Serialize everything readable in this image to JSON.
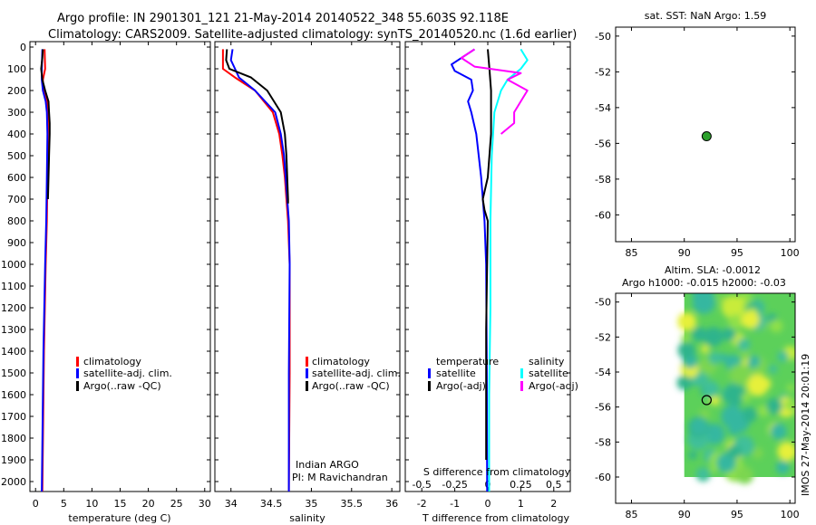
{
  "header": {
    "line1": "Argo profile: IN 2901301_121 21-May-2014 20140522_348 55.603S 92.118E",
    "line2": "Climatology: CARS2009. Satellite-adjusted climatology: synTS_20140520.nc (1.6d earlier)"
  },
  "colors": {
    "climatology": "#ff0000",
    "satellite": "#0000ff",
    "argo": "#000000",
    "sal_satellite": "#00ffff",
    "sal_argo": "#ff00ff",
    "float_marker": "#2ca02c"
  },
  "credit": "IMOS 27-May-2014 20:01:19",
  "chart_data": [
    {
      "type": "line",
      "id": "temperature",
      "xlabel": "temperature (deg C)",
      "xlim": [
        -1,
        31
      ],
      "ylim": [
        2100,
        0
      ],
      "xticks": [
        0,
        5,
        10,
        15,
        20,
        25,
        30
      ],
      "yticks": [
        0,
        100,
        200,
        300,
        400,
        500,
        600,
        700,
        800,
        900,
        1000,
        1100,
        1200,
        1300,
        1400,
        1500,
        1600,
        1700,
        1800,
        1900,
        2000
      ],
      "legend": [
        "climatology",
        "satellite-adj. clim.",
        "Argo(..raw -QC)"
      ],
      "series": [
        {
          "name": "climatology",
          "color": "red",
          "depth": [
            10,
            100,
            150,
            200,
            250,
            300,
            400,
            600,
            800,
            1000,
            1400,
            2050
          ],
          "values": [
            1.6,
            1.7,
            1.3,
            1.4,
            2.0,
            2.2,
            2.2,
            2.1,
            2.0,
            1.8,
            1.5,
            1.2
          ]
        },
        {
          "name": "satellite-adj. clim.",
          "color": "blue",
          "depth": [
            10,
            100,
            150,
            200,
            250,
            300,
            400,
            600,
            800,
            1000,
            1400,
            2050
          ],
          "values": [
            1.2,
            1.1,
            1.1,
            1.3,
            1.8,
            2.0,
            2.1,
            2.0,
            1.9,
            1.7,
            1.4,
            1.1
          ]
        },
        {
          "name": "Argo(..raw -QC)",
          "color": "black",
          "depth": [
            10,
            50,
            100,
            150,
            200,
            250,
            300,
            350,
            400,
            500,
            600,
            700
          ],
          "values": [
            1.3,
            1.2,
            1.0,
            1.2,
            1.7,
            2.3,
            2.4,
            2.5,
            2.5,
            2.4,
            2.3,
            2.2
          ]
        }
      ]
    },
    {
      "type": "line",
      "id": "salinity",
      "xlabel": "salinity",
      "xlim": [
        33.8,
        36.1
      ],
      "ylim": [
        2100,
        0
      ],
      "xticks": [
        34,
        34.5,
        35,
        35.5,
        36
      ],
      "legend": [
        "climatology",
        "satellite-adj. clim.",
        "Argo(..raw -QC)"
      ],
      "annotation": [
        "Indian ARGO",
        "PI: M Ravichandran"
      ],
      "series": [
        {
          "name": "climatology",
          "color": "red",
          "depth": [
            10,
            100,
            140,
            200,
            300,
            400,
            500,
            600,
            700,
            800,
            1000,
            1500,
            2050
          ],
          "values": [
            33.9,
            33.9,
            34.05,
            34.3,
            34.52,
            34.6,
            34.64,
            34.67,
            34.69,
            34.71,
            34.73,
            34.73,
            34.72
          ]
        },
        {
          "name": "satellite-adj. clim.",
          "color": "blue",
          "depth": [
            10,
            60,
            100,
            140,
            200,
            300,
            400,
            500,
            600,
            700,
            800,
            1000,
            1500,
            2050
          ],
          "values": [
            34.02,
            34.0,
            34.05,
            34.1,
            34.3,
            34.55,
            34.62,
            34.66,
            34.68,
            34.7,
            34.72,
            34.73,
            34.72,
            34.72
          ]
        },
        {
          "name": "Argo(..raw -QC)",
          "color": "black",
          "depth": [
            10,
            60,
            100,
            140,
            200,
            300,
            400,
            500,
            600,
            700,
            720
          ],
          "values": [
            33.95,
            33.94,
            33.98,
            34.25,
            34.45,
            34.62,
            34.67,
            34.69,
            34.7,
            34.71,
            34.71
          ]
        }
      ]
    },
    {
      "type": "line",
      "id": "differences",
      "xlabel": "T difference from climatology",
      "xlabel_top": "S difference from climatology",
      "xlim": [
        -2.5,
        2.5
      ],
      "ylim": [
        2100,
        0
      ],
      "xticks": [
        -2,
        -1,
        0,
        1,
        2
      ],
      "xticks_top": [
        "-0.5",
        "-0.25",
        "0",
        "0.25",
        "0.5"
      ],
      "legend_headers": [
        "temperature",
        "salinity"
      ],
      "legend": [
        "satellite",
        "Argo(-adj)",
        "satellite",
        "Argo(-adj)"
      ],
      "series": [
        {
          "name": "temperature satellite",
          "color": "blue",
          "depth": [
            10,
            80,
            110,
            150,
            200,
            250,
            300,
            400,
            600,
            800,
            1000,
            1500,
            2050
          ],
          "values": [
            -0.4,
            -1.1,
            -1.0,
            -0.5,
            -0.45,
            -0.6,
            -0.5,
            -0.35,
            -0.2,
            -0.1,
            -0.05,
            -0.03,
            -0.02
          ]
        },
        {
          "name": "temperature Argo(-adj)",
          "color": "black",
          "depth": [
            10,
            100,
            200,
            300,
            400,
            500,
            600,
            700,
            750,
            800,
            1300,
            1600,
            1900
          ],
          "values": [
            0.0,
            0.05,
            0.1,
            0.1,
            0.1,
            0.05,
            0.0,
            -0.15,
            -0.1,
            0.0,
            -0.05,
            -0.05,
            -0.05
          ]
        },
        {
          "name": "salinity satellite",
          "color": "cyan",
          "depth": [
            10,
            60,
            100,
            150,
            200,
            300,
            500,
            800,
            1200,
            1600,
            2050
          ],
          "values": [
            0.25,
            0.3,
            0.25,
            0.15,
            0.1,
            0.05,
            0.03,
            0.02,
            0.02,
            0.01,
            0.01
          ]
        },
        {
          "name": "salinity Argo(-adj)",
          "color": "magenta",
          "depth": [
            10,
            50,
            90,
            120,
            150,
            200,
            250,
            300,
            350,
            400
          ],
          "values": [
            -0.1,
            -0.2,
            -0.1,
            0.25,
            0.15,
            0.3,
            0.25,
            0.2,
            0.2,
            0.1
          ]
        }
      ]
    },
    {
      "type": "scatter",
      "id": "sst_map",
      "title": "sat. SST: NaN Argo: 1.59",
      "xlim": [
        83.5,
        100.5
      ],
      "ylim": [
        -61.5,
        -49.5
      ],
      "xticks": [
        85,
        90,
        95,
        100
      ],
      "yticks": [
        -50,
        -52,
        -54,
        -56,
        -58,
        -60
      ],
      "points": [
        {
          "x": 92.118,
          "y": -55.603
        }
      ]
    },
    {
      "type": "heatmap",
      "id": "sla_map",
      "title": "Altim. SLA: -0.0012",
      "subtitle": "Argo h1000: -0.015 h2000: -0.03",
      "xlim": [
        83.5,
        100.5
      ],
      "ylim": [
        -61.5,
        -49.5
      ],
      "xticks": [
        85,
        90,
        95,
        100
      ],
      "yticks": [
        -50,
        -52,
        -54,
        -56,
        -58,
        -60
      ],
      "data_extent": {
        "lon": [
          90,
          100.5
        ],
        "lat": [
          -60,
          -49.5
        ]
      },
      "points": [
        {
          "x": 92.118,
          "y": -55.603
        }
      ]
    }
  ]
}
